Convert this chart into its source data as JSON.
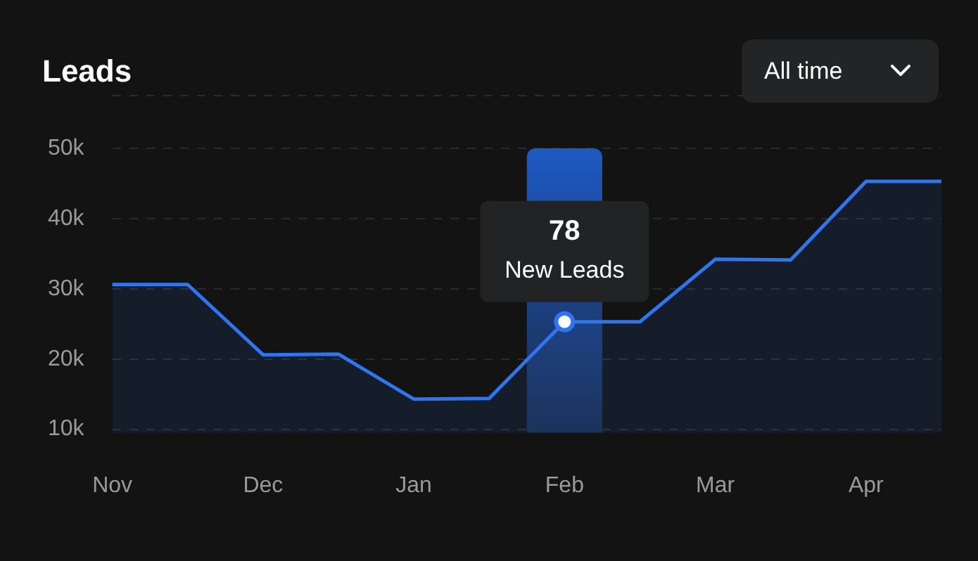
{
  "chart_data": {
    "type": "area",
    "title": "Leads",
    "categories": [
      "Nov",
      null,
      "Dec",
      null,
      "Jan",
      null,
      "Feb",
      null,
      "Mar",
      null,
      "Apr",
      null
    ],
    "series": [
      {
        "color": "#2f74f0",
        "values": [
          30600,
          30600,
          20600,
          20700,
          14300,
          14400,
          25300,
          25300,
          34200,
          34100,
          45300,
          45300
        ]
      }
    ],
    "ylim": [
      9500,
      57500
    ],
    "yticks": [
      {
        "value": 10000,
        "label": "10k"
      },
      {
        "value": 20000,
        "label": "20k"
      },
      {
        "value": 30000,
        "label": "30k"
      },
      {
        "value": 40000,
        "label": "40k"
      },
      {
        "value": 50000,
        "label": "50k"
      },
      {
        "value": 57500,
        "label": null
      }
    ],
    "grid": "y",
    "marker": "none",
    "line_style": "solid",
    "bands": [
      {
        "axis": "x",
        "from": "Feb",
        "to": "Feb",
        "color": "#1e62d8"
      }
    ],
    "annotations": [
      "All time",
      {
        "text": "78",
        "x": "Feb",
        "y": 25300
      },
      {
        "text": "New Leads",
        "x": "Feb",
        "y": 25300
      }
    ]
  }
}
